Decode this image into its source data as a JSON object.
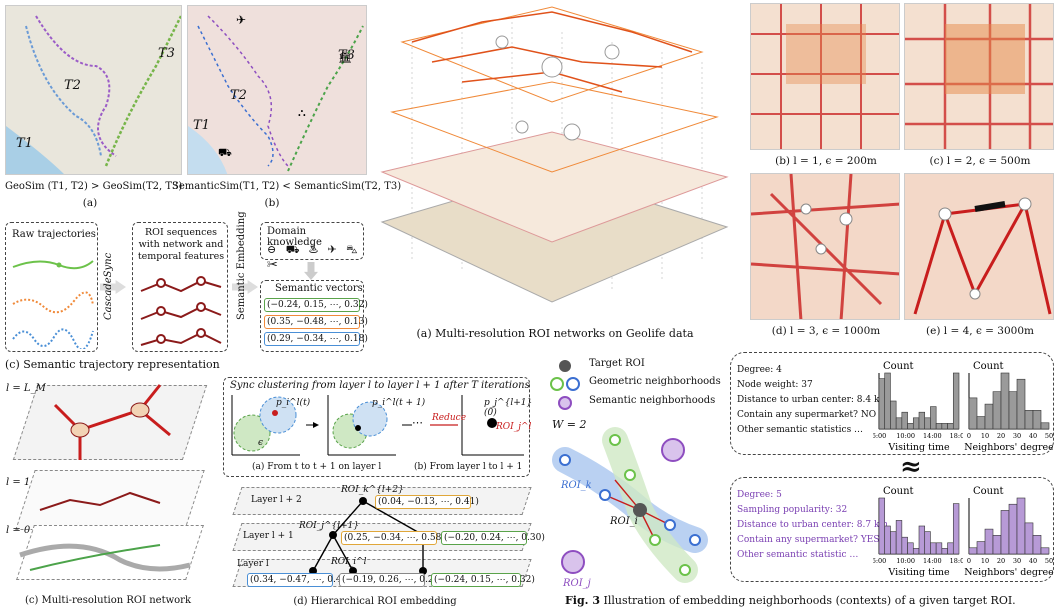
{
  "panel_a_top": {
    "left_map": {
      "labels": [
        "T1",
        "T2",
        "T3"
      ]
    },
    "right_map": {
      "labels": [
        "T1",
        "T2",
        "T3"
      ]
    },
    "geosim_text": "GeoSim (T1, T2) > GeoSim(T2, T3)",
    "semsim_text": "SemanticSim(T1, T2) < SemanticSim(T2, T3)",
    "label_a": "(a)",
    "label_b": "(b)"
  },
  "pipeline": {
    "raw_title": "Raw trajectories",
    "cascade": "CascadeSync",
    "roi_title": "ROI sequences with network and temporal features",
    "semantic_embedding": "Semantic Embedding",
    "domain_title": "Domain knowledge",
    "vectors_title": "Semantic vectors",
    "vectors": [
      "(−0.24, 0.15, ⋯, 0.32)",
      "(0.35, −0.48, ⋯, 0.13)",
      "(0.29, −0.34, ⋯, 0.18)"
    ],
    "caption": "(c) Semantic trajectory representation"
  },
  "center_network": {
    "caption": "(a) Multi-resolution ROI networks on Geolife data"
  },
  "resolution_maps": [
    {
      "caption": "(b) l = 1, ϵ = 200m"
    },
    {
      "caption": "(c) l = 2, ϵ = 500m"
    },
    {
      "caption": "(d) l = 3, ϵ = 1000m"
    },
    {
      "caption": "(e) l = 4, ϵ = 3000m"
    }
  ],
  "multires": {
    "layer_labels": [
      "l = L_M",
      "l = 1",
      "l = 0"
    ],
    "caption": "(c) Multi-resolution ROI network"
  },
  "sync": {
    "title": "Sync clustering from layer l to layer l + 1 after T iterations",
    "p_t": "p_i^l(t)",
    "p_t1": "p_i^l(t + 1)",
    "p_0": "p_j^{l+1}(0)",
    "roi": "ROI_j^l",
    "eps": "ϵ",
    "reduce": "Reduce",
    "dots": "⋯",
    "sub_a": "(a) From t to t + 1 on layer l",
    "sub_b": "(b) From layer l to l + 1"
  },
  "hier": {
    "layers": [
      "Layer l + 2",
      "Layer l + 1",
      "Layer l"
    ],
    "roi_top": "ROI_k^{l+2}",
    "roi_mid": "ROI_j^{l+1}",
    "roi_bot": "ROI_i^l",
    "vec_top": "(0.04, −0.13, ⋯, 0.41)",
    "vec_mid": [
      "(0.25, −0.34, ⋯, 0.58)",
      "(−0.20, 0.24, ⋯, 0.30)"
    ],
    "vec_bot": [
      "(0.34, −0.47, ⋯, 0.45)",
      "(−0.19, 0.26, ⋯, 0.28)",
      "(−0.24, 0.15, ⋯, 0.32)"
    ],
    "caption": "(d) Hierarchical ROI embedding"
  },
  "fig3": {
    "legend": [
      "Target ROI",
      "Geometric neighborhoods",
      "Semantic neighborhoods"
    ],
    "w_label": "W = 2",
    "roi_k": "ROI_k",
    "roi_i": "ROI_i",
    "roi_j": "ROI_j",
    "approx": "≈",
    "caption_bold": "Fig. 3",
    "caption_rest": "Illustration of embedding neighborhoods (contexts) of a given target ROI.",
    "stats_top": [
      "Degree: 4",
      "Node weight: 37",
      "Distance to urban center: 8.4 km",
      "Contain any supermarket? NO",
      "Other semantic statistics …"
    ],
    "stats_bottom": [
      "Degree: 5",
      "Sampling popularity: 32",
      "Distance to urban center: 8.7 km",
      "Contain any supermarket? YES",
      "Other semantic statistic …"
    ],
    "hist_count": "Count",
    "visit_label": "Visiting time",
    "degree_label": "Neighbors' degree",
    "visit_ticks": [
      "6:00",
      "10:00",
      "14:00",
      "18:00"
    ],
    "degree_ticks": [
      "0",
      "10",
      "20",
      "30",
      "40",
      "50"
    ],
    "colors": {
      "gray": "#9a9a9a",
      "purple": "#b79ad6",
      "green": "#6cc24a",
      "blue": "#3b6fd1",
      "red": "#c81d1d"
    }
  },
  "chart_data": [
    {
      "type": "bar",
      "title": "Count",
      "xlabel": "Visiting time",
      "ylabel": "",
      "categories": [
        "6",
        "7",
        "8",
        "9",
        "10",
        "11",
        "12",
        "13",
        "14",
        "15",
        "16",
        "17",
        "18",
        "19"
      ],
      "values": [
        9,
        10,
        5,
        2,
        3,
        1,
        2,
        3,
        2,
        4,
        1,
        1,
        1,
        10
      ]
    },
    {
      "type": "bar",
      "title": "Count",
      "xlabel": "Neighbors' degree",
      "ylabel": "",
      "categories": [
        "0-5",
        "5-10",
        "10-15",
        "15-20",
        "20-25",
        "25-30",
        "30-35",
        "35-40",
        "40-45",
        "45-50"
      ],
      "values": [
        5,
        2,
        4,
        6,
        9,
        6,
        8,
        3,
        3,
        1
      ]
    },
    {
      "type": "bar",
      "title": "Count",
      "xlabel": "Visiting time",
      "ylabel": "",
      "categories": [
        "6",
        "7",
        "8",
        "9",
        "10",
        "11",
        "12",
        "13",
        "14",
        "15",
        "16",
        "17",
        "18",
        "19"
      ],
      "values": [
        10,
        5,
        4,
        6,
        3,
        2,
        1,
        5,
        4,
        2,
        2,
        1,
        2,
        9
      ]
    },
    {
      "type": "bar",
      "title": "Count",
      "xlabel": "Neighbors' degree",
      "ylabel": "",
      "categories": [
        "0-5",
        "5-10",
        "10-15",
        "15-20",
        "20-25",
        "25-30",
        "30-35",
        "35-40",
        "40-45",
        "45-50"
      ],
      "values": [
        1,
        2,
        4,
        3,
        7,
        8,
        9,
        5,
        3,
        1
      ]
    }
  ]
}
